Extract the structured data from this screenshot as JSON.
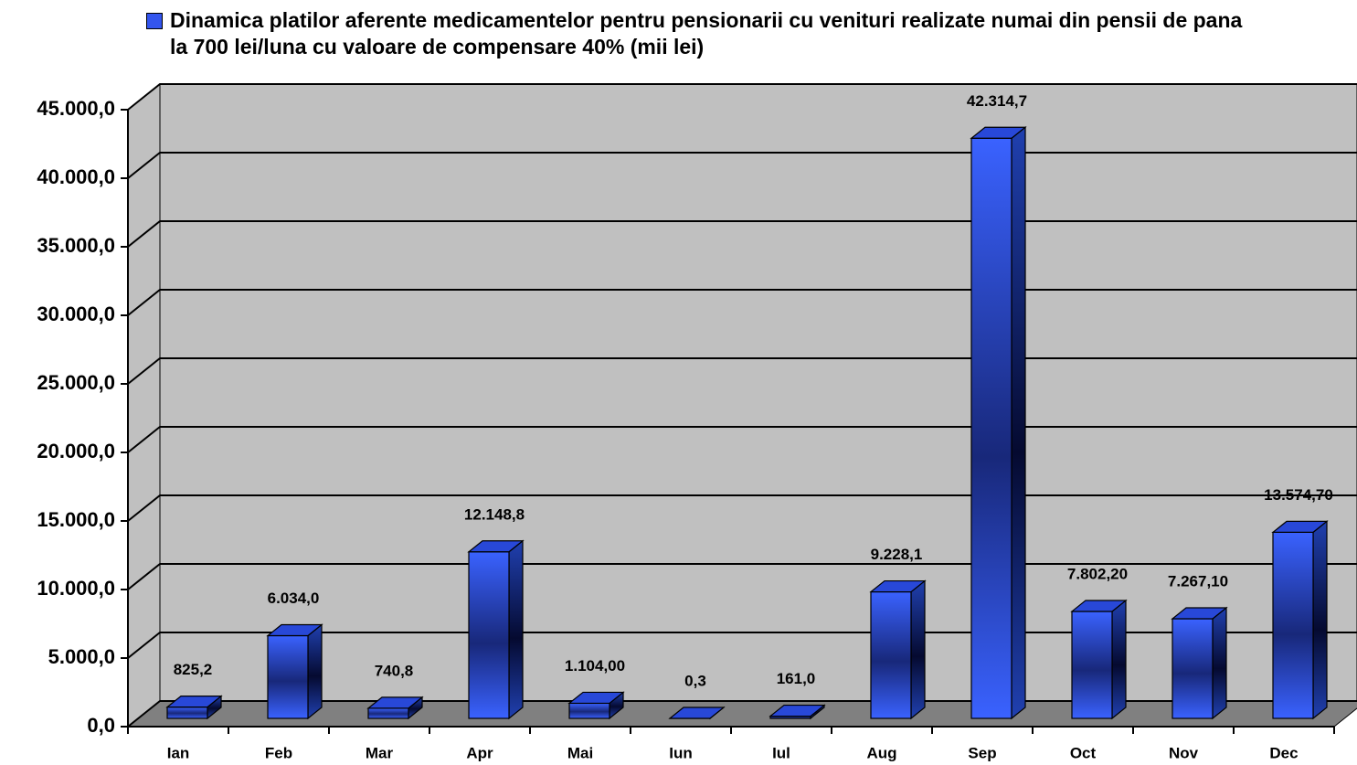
{
  "chart_data": {
    "type": "bar3d",
    "categories": [
      "Ian",
      "Feb",
      "Mar",
      "Apr",
      "Mai",
      "Iun",
      "Iul",
      "Aug",
      "Sep",
      "Oct",
      "Nov",
      "Dec"
    ],
    "series": [
      {
        "name": "Dinamica platilor aferente medicamentelor pentru pensionarii cu venituri realizate numai din pensii de pana la 700 lei/luna cu valoare de compensare 40% (mii lei)",
        "color": "#3355ee",
        "values": [
          825.2,
          6034.0,
          740.8,
          12148.8,
          1104.0,
          0.3,
          161.0,
          9228.1,
          42314.7,
          7802.2,
          7267.1,
          13574.7
        ],
        "value_labels": [
          "825,2",
          "6.034,0",
          "740,8",
          "12.148,8",
          "1.104,00",
          "0,3",
          "161,0",
          "9.228,1",
          "42.314,7",
          "7.802,20",
          "7.267,10",
          "13.574,70"
        ]
      }
    ],
    "ylim": [
      0,
      45000
    ],
    "yticks": [
      {
        "value": 0,
        "label": "0,0"
      },
      {
        "value": 5000,
        "label": "5.000,0"
      },
      {
        "value": 10000,
        "label": "10.000,0"
      },
      {
        "value": 15000,
        "label": "15.000,0"
      },
      {
        "value": 20000,
        "label": "20.000,0"
      },
      {
        "value": 25000,
        "label": "25.000,0"
      },
      {
        "value": 30000,
        "label": "30.000,0"
      },
      {
        "value": 35000,
        "label": "35.000,0"
      },
      {
        "value": 40000,
        "label": "40.000,0"
      },
      {
        "value": 45000,
        "label": "45.000,0"
      }
    ],
    "grid": true,
    "legend": "top"
  }
}
